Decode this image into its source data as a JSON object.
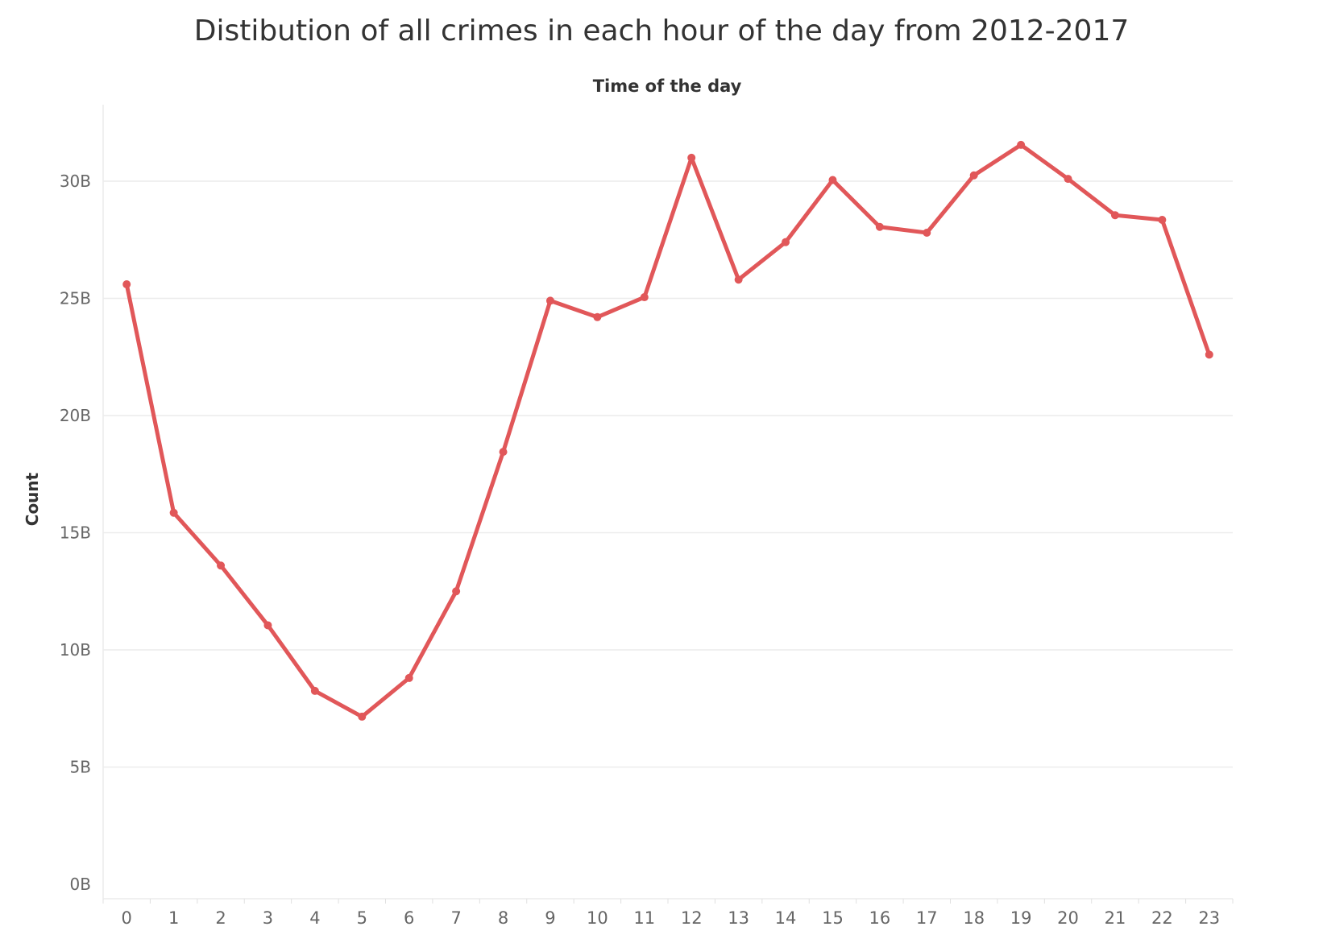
{
  "chart_data": {
    "type": "line",
    "title": "Distibution of all crimes in each hour of the day from 2012-2017",
    "xlabel": "Time of the day",
    "ylabel": "Count",
    "categories": [
      "0",
      "1",
      "2",
      "3",
      "4",
      "5",
      "6",
      "7",
      "8",
      "9",
      "10",
      "11",
      "12",
      "13",
      "14",
      "15",
      "16",
      "17",
      "18",
      "19",
      "20",
      "21",
      "22",
      "23"
    ],
    "values": [
      25.6,
      15.85,
      13.6,
      11.05,
      8.25,
      7.15,
      8.8,
      12.5,
      18.45,
      24.9,
      24.2,
      25.05,
      31.0,
      25.8,
      27.4,
      30.05,
      28.05,
      27.8,
      30.25,
      31.55,
      30.1,
      28.55,
      28.35,
      22.6
    ],
    "y_unit": "B",
    "ylim": [
      0,
      33
    ],
    "y_ticks": [
      "0B",
      "5B",
      "10B",
      "15B",
      "20B",
      "25B",
      "30B"
    ],
    "y_tick_values": [
      0,
      5,
      10,
      15,
      20,
      25,
      30
    ],
    "grid": true,
    "line_color": "#e15759"
  }
}
